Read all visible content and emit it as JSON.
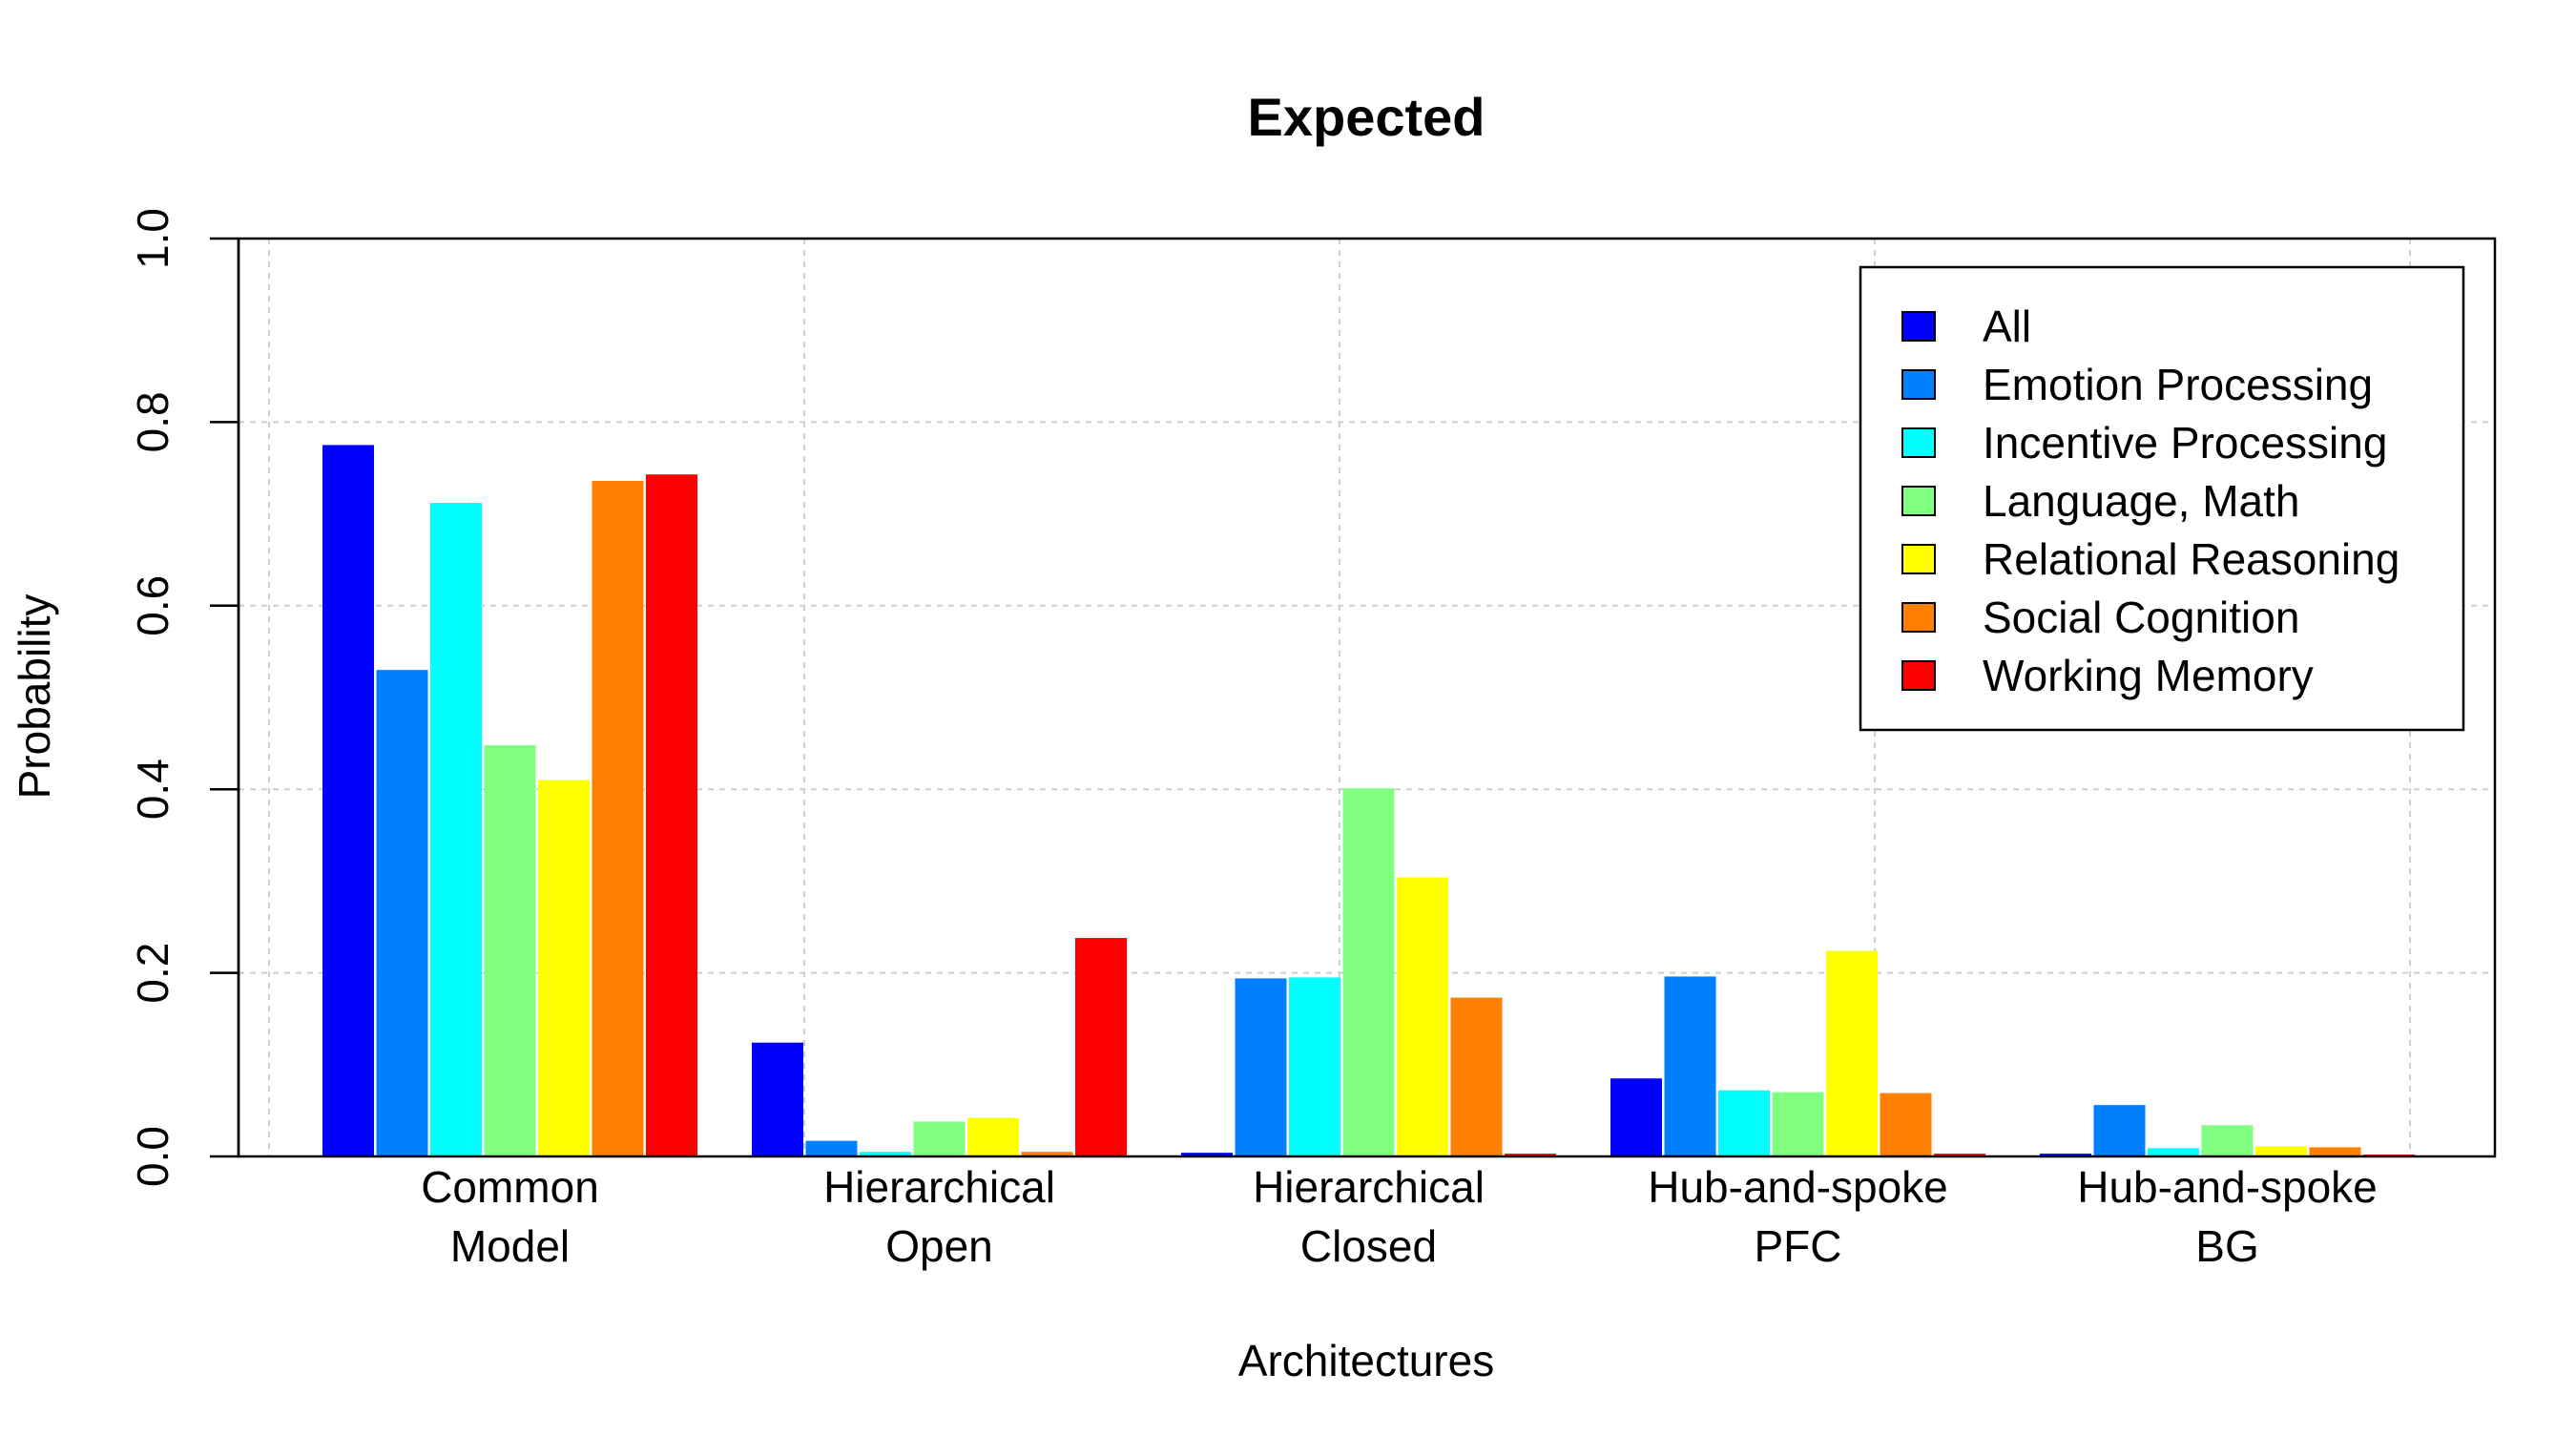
{
  "chart_data": {
    "type": "bar",
    "title": "Expected",
    "xlabel": "Architectures",
    "ylabel": "Probability",
    "ylim": [
      0,
      1
    ],
    "yticks": [
      "0.0",
      "0.2",
      "0.4",
      "0.6",
      "0.8",
      "1.0"
    ],
    "grid": true,
    "legend_position": "top-right",
    "categories": [
      [
        "Common",
        "Model"
      ],
      [
        "Hierarchical",
        "Open"
      ],
      [
        "Hierarchical",
        "Closed"
      ],
      [
        "Hub-and-spoke",
        "PFC"
      ],
      [
        "Hub-and-spoke",
        "BG"
      ]
    ],
    "series": [
      {
        "name": "All",
        "color": "#0000FF",
        "values": [
          0.775,
          0.124,
          0.004,
          0.085,
          0.003
        ]
      },
      {
        "name": "Emotion Processing",
        "color": "#0080FF",
        "values": [
          0.53,
          0.017,
          0.194,
          0.196,
          0.056
        ]
      },
      {
        "name": "Incentive Processing",
        "color": "#00FFFF",
        "values": [
          0.712,
          0.005,
          0.195,
          0.072,
          0.009
        ]
      },
      {
        "name": "Language, Math",
        "color": "#80FF80",
        "values": [
          0.448,
          0.038,
          0.401,
          0.07,
          0.034
        ]
      },
      {
        "name": "Relational Reasoning",
        "color": "#FFFF00",
        "values": [
          0.41,
          0.042,
          0.304,
          0.224,
          0.011
        ]
      },
      {
        "name": "Social Cognition",
        "color": "#FF8000",
        "values": [
          0.736,
          0.005,
          0.173,
          0.069,
          0.01
        ]
      },
      {
        "name": "Working Memory",
        "color": "#FF0000",
        "values": [
          0.743,
          0.238,
          0.003,
          0.003,
          0.002
        ]
      }
    ]
  }
}
